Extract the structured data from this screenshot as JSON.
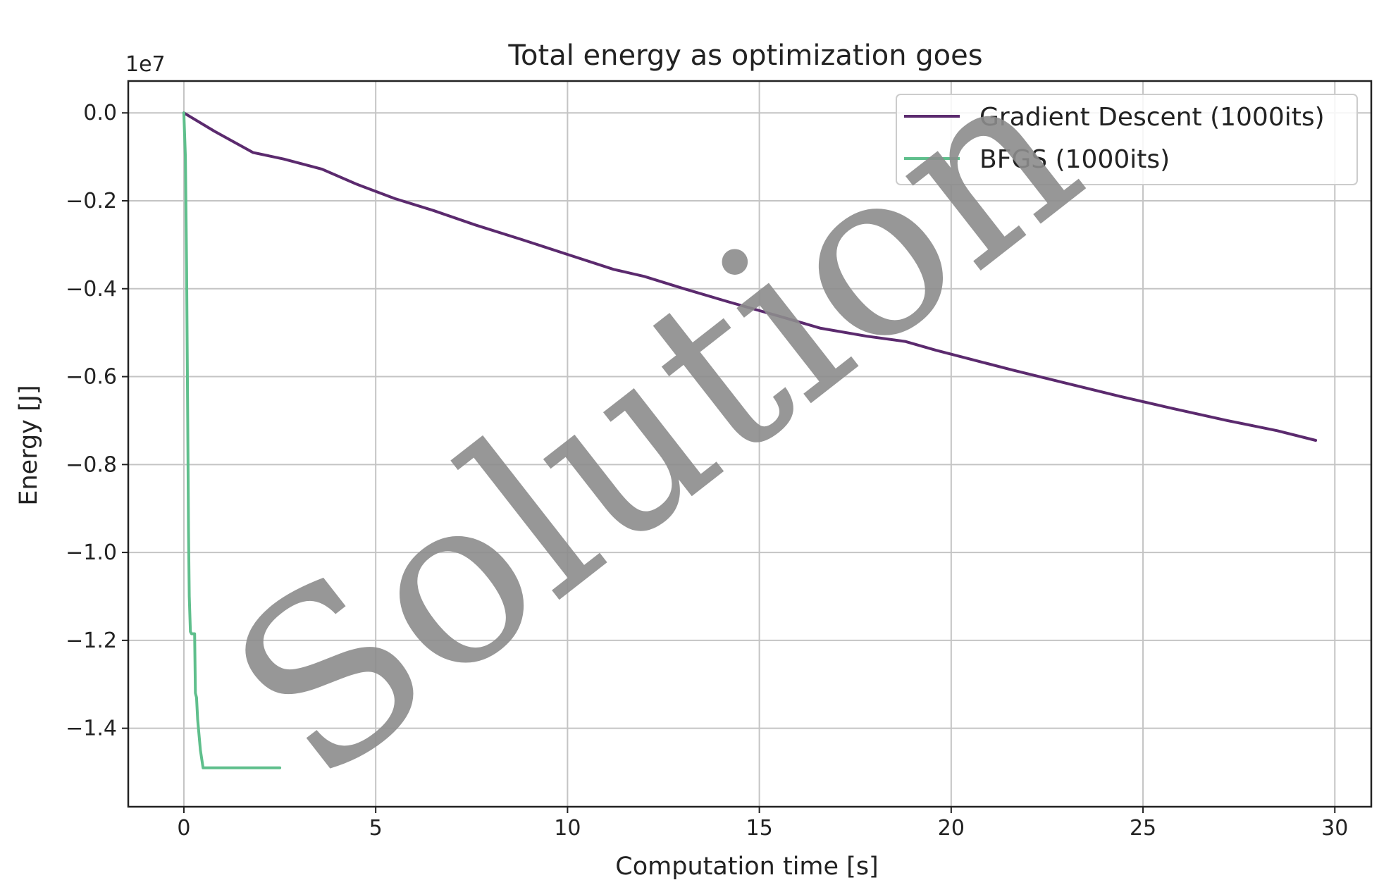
{
  "chart_data": {
    "type": "line",
    "title": "Total energy as optimization goes",
    "xlabel": "Computation time [s]",
    "ylabel": "Energy [J]",
    "y_offset_label": "1e7",
    "xlim": [
      -1.45,
      30.95
    ],
    "ylim": [
      -1.5785,
      0.0725
    ],
    "x_ticks": [
      0,
      5,
      10,
      15,
      20,
      25,
      30
    ],
    "x_tick_labels": [
      "0",
      "5",
      "10",
      "15",
      "20",
      "25",
      "30"
    ],
    "y_ticks": [
      0.0,
      -0.2,
      -0.4,
      -0.6,
      -0.8,
      -1.0,
      -1.2,
      -1.4
    ],
    "y_tick_labels": [
      "0.0",
      "−0.2",
      "−0.4",
      "−0.6",
      "−0.8",
      "−1.0",
      "−1.2",
      "−1.4"
    ],
    "grid": true,
    "legend_position": "top-right",
    "series": [
      {
        "name": "Gradient Descent (1000its)",
        "color": "#5b2a6e",
        "x": [
          0,
          0.8,
          1.8,
          2.6,
          3.6,
          4.5,
          5.5,
          6.5,
          7.6,
          8.8,
          10.0,
          11.2,
          12.0,
          13.0,
          14.2,
          15.5,
          16.6,
          17.8,
          18.8,
          19.6,
          20.4,
          21.6,
          23.0,
          24.4,
          25.8,
          27.2,
          28.5,
          29.5
        ],
        "y": [
          0.0,
          -0.042,
          -0.09,
          -0.105,
          -0.128,
          -0.162,
          -0.195,
          -0.222,
          -0.255,
          -0.288,
          -0.322,
          -0.356,
          -0.372,
          -0.399,
          -0.43,
          -0.462,
          -0.49,
          -0.508,
          -0.52,
          -0.54,
          -0.558,
          -0.585,
          -0.615,
          -0.645,
          -0.673,
          -0.7,
          -0.723,
          -0.745
        ]
      },
      {
        "name": "BFGS (1000its)",
        "color": "#5fbf8c",
        "x": [
          0,
          0.04,
          0.07,
          0.1,
          0.12,
          0.14,
          0.17,
          0.2,
          0.28,
          0.3,
          0.33,
          0.36,
          0.43,
          0.5,
          0.55,
          0.65,
          0.8,
          1.5,
          2.5
        ],
        "y": [
          0.0,
          -0.1,
          -0.35,
          -0.7,
          -0.95,
          -1.1,
          -1.18,
          -1.185,
          -1.185,
          -1.32,
          -1.33,
          -1.38,
          -1.45,
          -1.49,
          -1.49,
          -1.49,
          -1.49,
          -1.49,
          -1.49
        ]
      }
    ]
  },
  "watermark": {
    "text": "Solution",
    "color": "#8c8c8c"
  }
}
